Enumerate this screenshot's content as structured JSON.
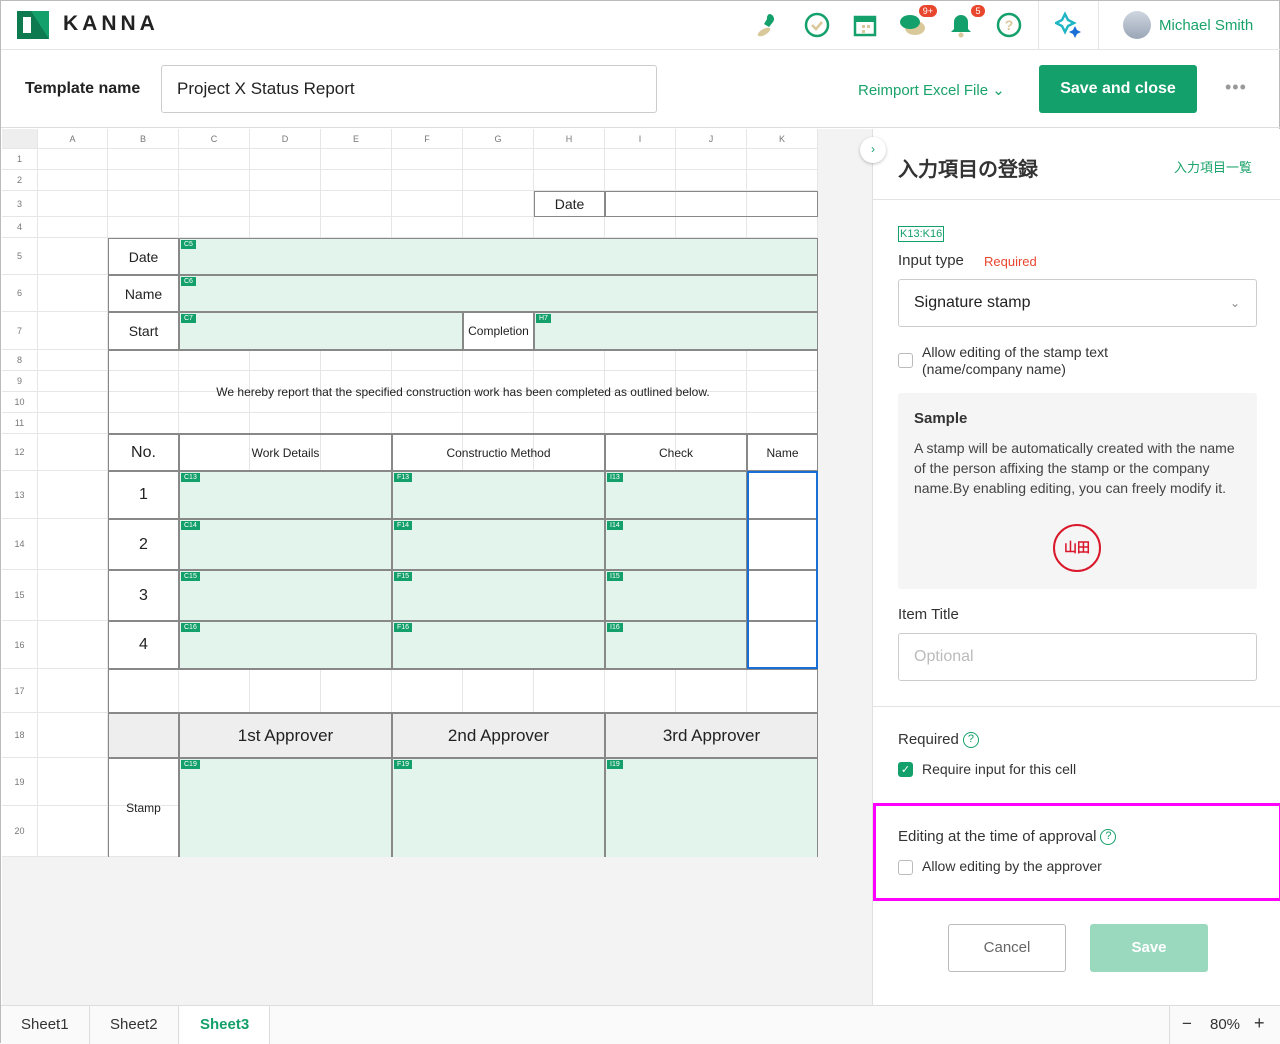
{
  "app": {
    "logo": "KANNA",
    "user_name": "Michael Smith",
    "icons": [
      {
        "name": "stamp-icon"
      },
      {
        "name": "check-circle-icon"
      },
      {
        "name": "calendar-icon"
      },
      {
        "name": "chat-icon",
        "badge": "9+"
      },
      {
        "name": "bell-icon",
        "badge": "5"
      },
      {
        "name": "help-icon"
      }
    ],
    "ai_icon": "sparkle-icon",
    "accent": "#14a06a"
  },
  "header": {
    "template_label": "Template name",
    "template_value": "Project X Status Report",
    "reimport": "Reimport Excel File",
    "save_close": "Save and close",
    "more": "•••"
  },
  "sheet": {
    "columns": [
      "A",
      "B",
      "C",
      "D",
      "E",
      "F",
      "G",
      "H",
      "I",
      "J",
      "K"
    ],
    "rows": [
      "1",
      "2",
      "3",
      "4",
      "5",
      "6",
      "7",
      "8",
      "9",
      "10",
      "11",
      "12",
      "13",
      "14",
      "15",
      "16",
      "17",
      "18",
      "19",
      "20"
    ],
    "cells": {
      "date_top": "Date",
      "date": "Date",
      "name": "Name",
      "start": "Start",
      "completion": "Completion",
      "statement": "We hereby report that the specified construction work has been completed as outlined below.",
      "no": "No.",
      "work_details": "Work Details",
      "method": "Constructio Method",
      "check": "Check",
      "name_col": "Name",
      "n1": "1",
      "n2": "2",
      "n3": "3",
      "n4": "4",
      "approver1": "1st Approver",
      "approver2": "2nd Approver",
      "approver3": "3rd Approver",
      "stamp": "Stamp"
    },
    "tags": [
      "C5",
      "C6",
      "C7",
      "H7",
      "C13",
      "F13",
      "I13",
      "C14",
      "F14",
      "I14",
      "C15",
      "F15",
      "I15",
      "C16",
      "F16",
      "I16",
      "C19",
      "F19",
      "I19"
    ]
  },
  "panel": {
    "title": "入力項目の登録",
    "list_link": "入力項目一覧",
    "range": "K13:K16",
    "input_type_label": "Input type",
    "required_tag": "Required",
    "input_type_value": "Signature stamp",
    "allow_edit_stamp": "Allow editing of the stamp text (name/company name)",
    "allow_edit_stamp_checked": false,
    "sample_title": "Sample",
    "sample_text": "A stamp will be automatically created with the name of the person affixing the stamp or the company name.By enabling editing, you can freely modify it.",
    "stamp_text": "山田",
    "item_title_label": "Item Title",
    "item_title_placeholder": "Optional",
    "required_label": "Required",
    "require_input": "Require input for this cell",
    "require_input_checked": true,
    "approval_label": "Editing at the time of approval",
    "allow_approver": "Allow editing by the approver",
    "allow_approver_checked": false,
    "cancel": "Cancel",
    "save": "Save"
  },
  "footer": {
    "sheets": [
      "Sheet1",
      "Sheet2",
      "Sheet3"
    ],
    "active_sheet": "Sheet3",
    "zoom": "80%"
  }
}
